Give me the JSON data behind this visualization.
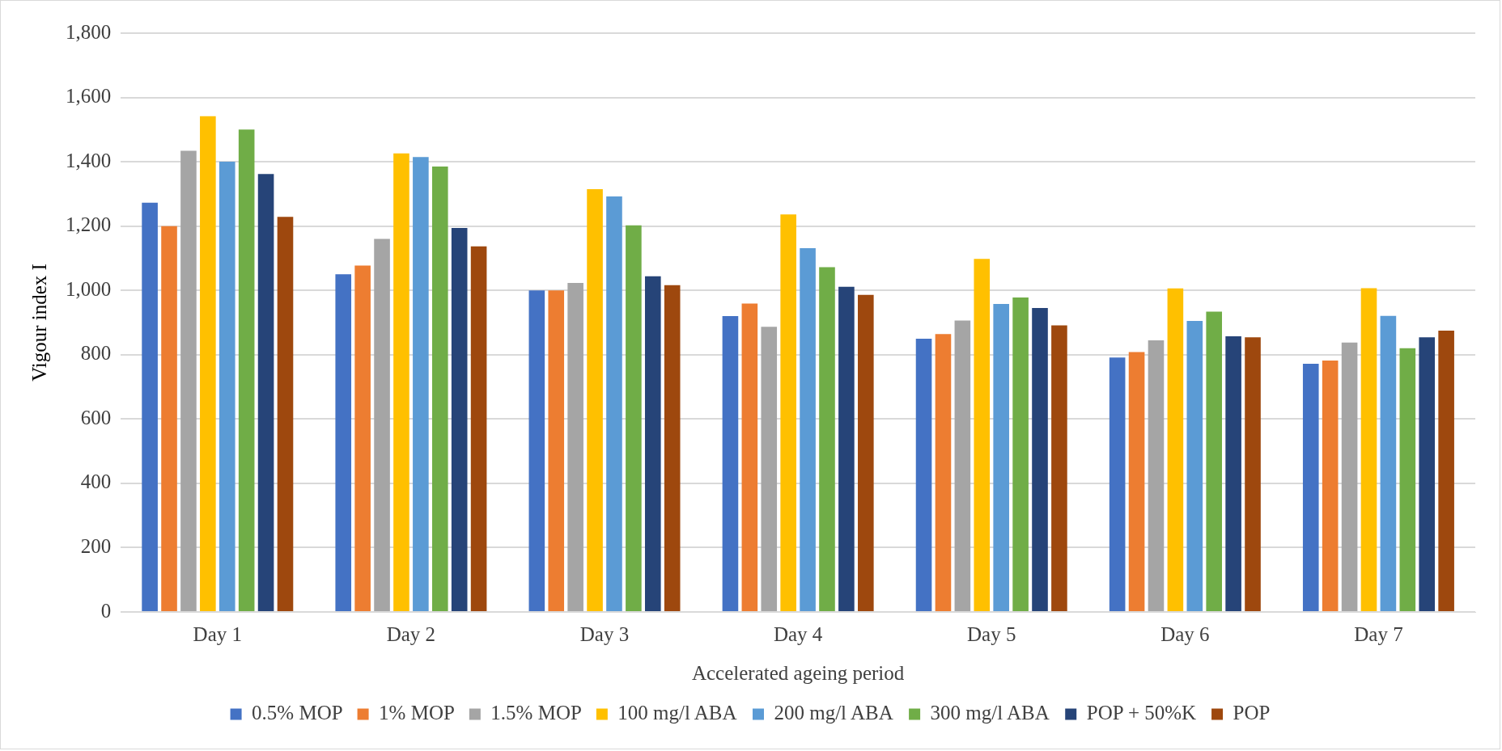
{
  "chart_data": {
    "type": "bar",
    "xlabel": "Accelerated ageing period",
    "ylabel": "Vigour index I",
    "categories": [
      "Day 1",
      "Day 2",
      "Day 3",
      "Day 4",
      "Day 5",
      "Day 6",
      "Day 7"
    ],
    "series": [
      {
        "name": "0.5% MOP",
        "color": "#4472c4",
        "values": [
          1273,
          1050,
          1000,
          920,
          850,
          791,
          772
        ]
      },
      {
        "name": "1% MOP",
        "color": "#ed7d31",
        "values": [
          1200,
          1077,
          1000,
          959,
          864,
          808,
          782
        ]
      },
      {
        "name": "1.5% MOP",
        "color": "#a5a5a5",
        "values": [
          1434,
          1160,
          1023,
          887,
          906,
          845,
          838
        ]
      },
      {
        "name": "100 mg/l ABA",
        "color": "#ffc000",
        "values": [
          1542,
          1426,
          1315,
          1236,
          1098,
          1006,
          1007
        ]
      },
      {
        "name": "200 mg/l ABA",
        "color": "#5b9bd5",
        "values": [
          1400,
          1415,
          1292,
          1131,
          958,
          905,
          921
        ]
      },
      {
        "name": "300 mg/l ABA",
        "color": "#70ad47",
        "values": [
          1500,
          1385,
          1202,
          1072,
          978,
          934,
          820
        ]
      },
      {
        "name": "POP + 50%K",
        "color": "#264478",
        "values": [
          1362,
          1194,
          1044,
          1011,
          945,
          857,
          854
        ]
      },
      {
        "name": "POP",
        "color": "#9e480e",
        "values": [
          1229,
          1137,
          1016,
          986,
          891,
          854,
          875
        ]
      }
    ],
    "ylim": [
      0,
      1800
    ],
    "yticks": [
      {
        "value": 0,
        "label": "0"
      },
      {
        "value": 200,
        "label": "200"
      },
      {
        "value": 400,
        "label": "400"
      },
      {
        "value": 600,
        "label": "600"
      },
      {
        "value": 800,
        "label": "800"
      },
      {
        "value": 1000,
        "label": "1,000"
      },
      {
        "value": 1200,
        "label": "1,200"
      },
      {
        "value": 1400,
        "label": "1,400"
      },
      {
        "value": 1600,
        "label": "1,600"
      },
      {
        "value": 1800,
        "label": "1,800"
      }
    ],
    "grid": "y",
    "legend": "bottom"
  }
}
